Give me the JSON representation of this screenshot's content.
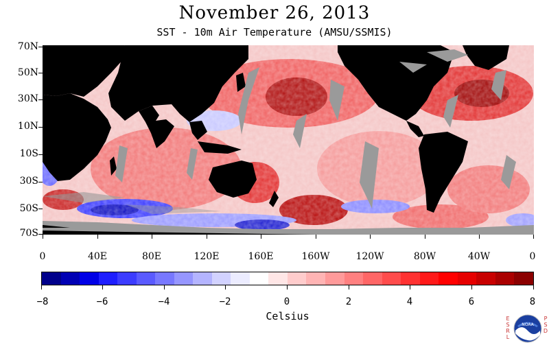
{
  "header": {
    "title": "November 26, 2013",
    "subtitle": "SST - 10m Air Temperature (AMSU/SSMIS)"
  },
  "map": {
    "lat_labels": [
      "70N",
      "50N",
      "30N",
      "10N",
      "10S",
      "30S",
      "50S",
      "70S"
    ],
    "lon_labels": [
      "0",
      "40E",
      "80E",
      "120E",
      "160E",
      "160W",
      "120W",
      "80W",
      "40W",
      "0"
    ],
    "land_color": "#000000",
    "missing_color": "#9a9a9a"
  },
  "colorbar": {
    "colors": [
      "#00008b",
      "#0000b4",
      "#0000e6",
      "#1e1eff",
      "#3c3cff",
      "#5a5aff",
      "#7878ff",
      "#9696ff",
      "#b4b4ff",
      "#d2d2ff",
      "#ececff",
      "#ffffff",
      "#ffe6e6",
      "#ffcccc",
      "#ffb4b4",
      "#ff9a9a",
      "#ff8080",
      "#ff6666",
      "#ff4c4c",
      "#ff3232",
      "#ff1919",
      "#ff0000",
      "#e60000",
      "#c80000",
      "#aa0000",
      "#8b0000"
    ],
    "tick_labels": [
      "−8",
      "−6",
      "−4",
      "−2",
      "0",
      "2",
      "4",
      "6",
      "8"
    ],
    "unit_label": "Celsius"
  },
  "logo": {
    "left_letters": "ESRL",
    "right_letters": "PSD",
    "center_text": "NOAA"
  }
}
